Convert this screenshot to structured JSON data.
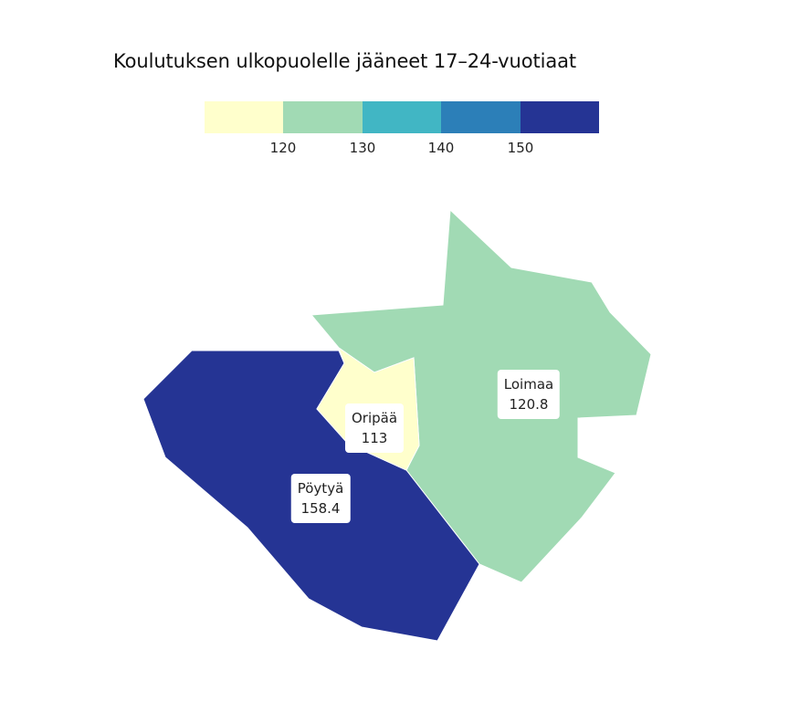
{
  "title": "Koulutuksen ulkopuolelle jääneet 17–24-vuotiaat",
  "legend": {
    "colors": [
      "#ffffcc",
      "#a1dab4",
      "#41b6c4",
      "#2c7fb8",
      "#253494"
    ],
    "ticks": [
      "120",
      "130",
      "140",
      "150"
    ]
  },
  "regions": [
    {
      "name": "Loimaa",
      "value": "120.8",
      "color": "#a1dab4"
    },
    {
      "name": "Pöytyä",
      "value": "158.4",
      "color": "#253494"
    },
    {
      "name": "Oripää",
      "value": "113",
      "color": "#ffffcc"
    }
  ]
}
